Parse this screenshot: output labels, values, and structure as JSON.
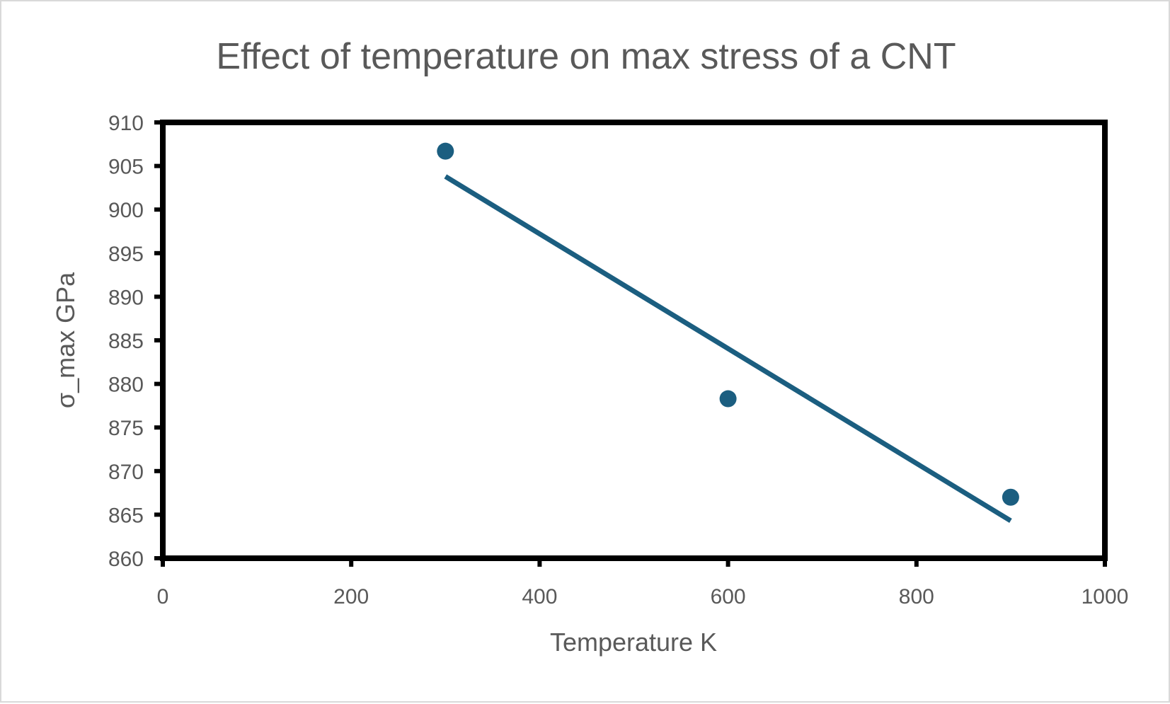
{
  "chart_data": {
    "type": "scatter",
    "title": "Effect of temperature on max stress of a CNT",
    "xlabel": "Temperature K",
    "ylabel": "σ_max GPa",
    "xlim": [
      0,
      1000
    ],
    "ylim": [
      860,
      910
    ],
    "xticks": [
      "0",
      "200",
      "400",
      "600",
      "800",
      "1000"
    ],
    "yticks": [
      "860",
      "865",
      "870",
      "875",
      "880",
      "885",
      "890",
      "895",
      "900",
      "905",
      "910"
    ],
    "series": [
      {
        "points": [
          {
            "x": 300,
            "y": 906.7
          },
          {
            "x": 600,
            "y": 878.3
          },
          {
            "x": 900,
            "y": 867.0
          }
        ],
        "color": "#1b5e80"
      }
    ],
    "trendline": {
      "type": "linear",
      "from": {
        "x": 300,
        "y": 903.8
      },
      "to": {
        "x": 900,
        "y": 864.3
      },
      "color": "#1b5e80"
    },
    "grid": false,
    "legend": "none"
  }
}
